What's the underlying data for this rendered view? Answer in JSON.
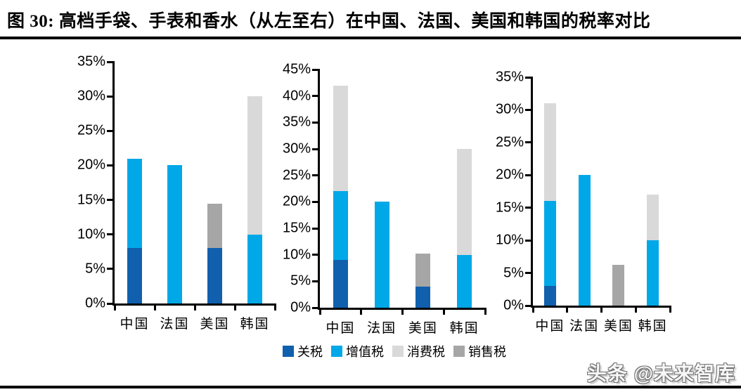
{
  "figure": {
    "title": "图 30:  高档手袋、手表和香水（从左至右）在中国、法国、美国和韩国的税率对比",
    "watermark": "头条 @未来智库"
  },
  "colors": {
    "tariff": "#1060AE",
    "vat": "#00A8E8",
    "consumption": "#D9D9D9",
    "sales": "#A6A6A6",
    "axis": "#000000"
  },
  "legend": [
    {
      "key": "tariff",
      "label": "关税"
    },
    {
      "key": "vat",
      "label": "增值税"
    },
    {
      "key": "consumption",
      "label": "消费税"
    },
    {
      "key": "sales",
      "label": "销售税"
    }
  ],
  "chart_data": [
    {
      "type": "bar",
      "stacked": true,
      "key": "handbags",
      "product": "高档手袋",
      "categories": [
        "中国",
        "法国",
        "美国",
        "韩国"
      ],
      "ylim": [
        0,
        35
      ],
      "ytick_step": 5,
      "ytick_suffix": "%",
      "grid": false,
      "series": [
        {
          "key": "tariff",
          "name": "关税",
          "values": [
            8,
            0,
            8,
            0
          ]
        },
        {
          "key": "vat",
          "name": "增值税",
          "values": [
            13,
            20,
            0,
            10
          ]
        },
        {
          "key": "consumption",
          "name": "消费税",
          "values": [
            0,
            0,
            0,
            20
          ]
        },
        {
          "key": "sales",
          "name": "销售税",
          "values": [
            0,
            0,
            6.4,
            0
          ]
        }
      ],
      "totals": [
        21,
        20,
        14.4,
        30
      ]
    },
    {
      "type": "bar",
      "stacked": true,
      "key": "watches",
      "product": "手表",
      "categories": [
        "中国",
        "法国",
        "美国",
        "韩国"
      ],
      "ylim": [
        0,
        45
      ],
      "ytick_step": 5,
      "ytick_suffix": "%",
      "grid": false,
      "series": [
        {
          "key": "tariff",
          "name": "关税",
          "values": [
            9,
            0,
            4,
            0
          ]
        },
        {
          "key": "vat",
          "name": "增值税",
          "values": [
            13,
            20,
            0,
            10
          ]
        },
        {
          "key": "consumption",
          "name": "消费税",
          "values": [
            20,
            0,
            0,
            20
          ]
        },
        {
          "key": "sales",
          "name": "销售税",
          "values": [
            0,
            0,
            6.2,
            0
          ]
        }
      ],
      "totals": [
        42,
        20,
        10.2,
        30
      ]
    },
    {
      "type": "bar",
      "stacked": true,
      "key": "perfume",
      "product": "香水",
      "categories": [
        "中国",
        "法国",
        "美国",
        "韩国"
      ],
      "ylim": [
        0,
        35
      ],
      "ytick_step": 5,
      "ytick_suffix": "%",
      "grid": false,
      "series": [
        {
          "key": "tariff",
          "name": "关税",
          "values": [
            3,
            0,
            0,
            0
          ]
        },
        {
          "key": "vat",
          "name": "增值税",
          "values": [
            13,
            20,
            0,
            10
          ]
        },
        {
          "key": "consumption",
          "name": "消费税",
          "values": [
            15,
            0,
            0,
            7
          ]
        },
        {
          "key": "sales",
          "name": "销售税",
          "values": [
            0,
            0,
            6.3,
            0
          ]
        }
      ],
      "totals": [
        31,
        20,
        6.3,
        17
      ]
    }
  ]
}
